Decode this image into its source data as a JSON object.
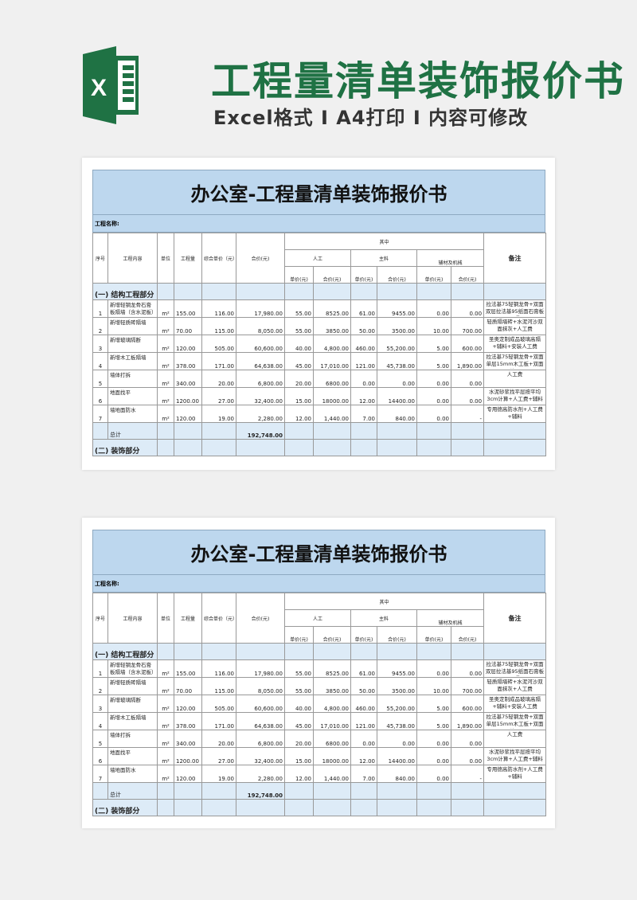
{
  "hero": {
    "title": "工程量清单装饰报价书",
    "subtitle": "Excel格式 I A4打印 I 内容可修改",
    "brand_color": "#1f7244",
    "logo_letter": "X"
  },
  "sheet": {
    "title": "办公室-工程量清单装饰报价书",
    "project_name_label": "工程名称:",
    "headers": {
      "no": "序号",
      "content": "工程内容",
      "unit": "单位",
      "qty": "工程量",
      "unit_price": "综合单价（元）",
      "total": "合价(元)",
      "among": "其中",
      "labor": "人工",
      "main_material": "主料",
      "aux": "辅材及机械",
      "remark": "备注",
      "sub_unit_price": "单价(元)",
      "sub_total": "合价(元)"
    },
    "section1": "(一) 结构工程部分",
    "section2": "(二) 装饰部分",
    "total_label": "总计",
    "total_value": "192,748.00",
    "rows": [
      {
        "no": "1",
        "content": "新增轻钢龙骨石膏板隔墙（含水泥板）",
        "unit": "m²",
        "qty": "155.00",
        "price": "116.00",
        "total": "17,980.00",
        "lp": "55.00",
        "lt": "8525.00",
        "mp": "61.00",
        "mt": "9455.00",
        "ap": "0.00",
        "at": "0.00",
        "remark": "拉法基75轻钢龙骨+双面双层拉法基95纸面石膏板+隔"
      },
      {
        "no": "2",
        "content": "新增轻质砖隔墙",
        "unit": "m²",
        "qty": "70.00",
        "price": "115.00",
        "total": "8,050.00",
        "lp": "55.00",
        "lt": "3850.00",
        "mp": "50.00",
        "mt": "3500.00",
        "ap": "10.00",
        "at": "700.00",
        "remark": "轻质隔墙砖+水泥河沙双面抹灰+人工费"
      },
      {
        "no": "3",
        "content": "新增玻璃隔断",
        "unit": "m²",
        "qty": "120.00",
        "price": "505.00",
        "total": "60,600.00",
        "lp": "40.00",
        "lt": "4,800.00",
        "mp": "460.00",
        "mt": "55,200.00",
        "ap": "5.00",
        "at": "600.00",
        "remark": "圣奥定制成品玻璃高隔+辅料+安装人工费"
      },
      {
        "no": "4",
        "content": "新增木工板隔墙",
        "unit": "m²",
        "qty": "378.00",
        "price": "171.00",
        "total": "64,638.00",
        "lp": "45.00",
        "lt": "17,010.00",
        "mp": "121.00",
        "mt": "45,738.00",
        "ap": "5.00",
        "at": "1,890.00",
        "remark": "拉法基75轻钢龙骨+双面单层15mm木工板+双面单层"
      },
      {
        "no": "5",
        "content": "墙体打拆",
        "unit": "m²",
        "qty": "340.00",
        "price": "20.00",
        "total": "6,800.00",
        "lp": "20.00",
        "lt": "6800.00",
        "mp": "0.00",
        "mt": "0.00",
        "ap": "0.00",
        "at": "0.00",
        "remark": "人工费"
      },
      {
        "no": "6",
        "content": "地面找平",
        "unit": "m²",
        "qty": "1200.00",
        "price": "27.00",
        "total": "32,400.00",
        "lp": "15.00",
        "lt": "18000.00",
        "mp": "12.00",
        "mt": "14400.00",
        "ap": "0.00",
        "at": "0.00",
        "remark": "水泥砂浆找平层按平均3cm计算+人工费+辅料"
      },
      {
        "no": "7",
        "content": "墙地面防水",
        "unit": "m²",
        "qty": "120.00",
        "price": "19.00",
        "total": "2,280.00",
        "lp": "12.00",
        "lt": "1,440.00",
        "mp": "7.00",
        "mt": "840.00",
        "ap": "0.00",
        "at": "-",
        "remark": "专用德高防水剂+人工费+辅料"
      }
    ]
  }
}
